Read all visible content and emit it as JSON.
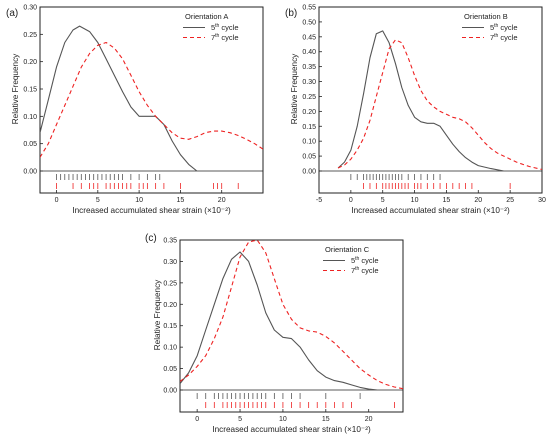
{
  "chart_data": [
    {
      "type": "line",
      "panel_label": "(a)",
      "legend_title": "Orientation A",
      "xlabel": "Increased accumulated shear strain (×10⁻²)",
      "ylabel": "Relative Frequency",
      "xlim": [
        -2,
        25
      ],
      "ylim": [
        0,
        0.3
      ],
      "xticks": [
        "0",
        "5",
        "10",
        "15",
        "20"
      ],
      "xtick_values": [
        0,
        5,
        10,
        15,
        20
      ],
      "yticks": [
        "0.00",
        "0.05",
        "0.10",
        "0.15",
        "0.20",
        "0.25",
        "0.30"
      ],
      "ytick_values": [
        0,
        0.05,
        0.1,
        0.15,
        0.2,
        0.25,
        0.3
      ],
      "legend_position": "top-right",
      "series": [
        {
          "name": "5th cycle",
          "name_base": "5",
          "name_sup": "th",
          "name_rest": " cycle",
          "color": "#555555",
          "dash": "solid",
          "x": [
            -2,
            -1,
            0,
            1,
            2,
            2.8,
            4,
            5,
            6,
            7,
            8,
            9,
            10,
            11,
            12,
            13,
            14,
            15,
            16,
            17
          ],
          "y": [
            0.07,
            0.13,
            0.19,
            0.235,
            0.258,
            0.265,
            0.255,
            0.235,
            0.205,
            0.175,
            0.145,
            0.117,
            0.1,
            0.1,
            0.1,
            0.085,
            0.055,
            0.03,
            0.012,
            0.0
          ],
          "rug": [
            0,
            0.5,
            1,
            1.5,
            2,
            2.5,
            3,
            3.5,
            4,
            4.5,
            5,
            5.5,
            6,
            6.5,
            7,
            7.5,
            8,
            9,
            10,
            11,
            12,
            12.5
          ]
        },
        {
          "name": "7th cycle",
          "name_base": "7",
          "name_sup": "th",
          "name_rest": " cycle",
          "color": "#ee2222",
          "dash": "dashed",
          "x": [
            -2,
            -1,
            0,
            1,
            2,
            3,
            4,
            5,
            6,
            7,
            8,
            9,
            10,
            11,
            12,
            13,
            14,
            15,
            16,
            17,
            18,
            19,
            20,
            21,
            22,
            23,
            24,
            25
          ],
          "y": [
            0.025,
            0.05,
            0.085,
            0.12,
            0.155,
            0.19,
            0.215,
            0.23,
            0.235,
            0.225,
            0.205,
            0.175,
            0.145,
            0.12,
            0.1,
            0.085,
            0.07,
            0.06,
            0.058,
            0.063,
            0.07,
            0.073,
            0.073,
            0.07,
            0.065,
            0.058,
            0.05,
            0.04
          ],
          "rug": [
            0,
            2,
            3,
            4,
            4.5,
            5,
            6,
            6.5,
            7,
            7.5,
            8,
            8.5,
            9,
            10,
            10.5,
            11,
            12,
            13,
            15,
            19,
            19.5,
            20,
            22
          ]
        }
      ]
    },
    {
      "type": "line",
      "panel_label": "(b)",
      "legend_title": "Orientation B",
      "xlabel": "Increased accumulated shear strain (×10⁻²)",
      "ylabel": "Relative Frequency",
      "xlim": [
        -5,
        30
      ],
      "ylim": [
        0,
        0.55
      ],
      "xticks": [
        "-5",
        "0",
        "5",
        "10",
        "15",
        "20",
        "25",
        "30"
      ],
      "xtick_values": [
        -5,
        0,
        5,
        10,
        15,
        20,
        25,
        30
      ],
      "yticks": [
        "0.00",
        "0.05",
        "0.10",
        "0.15",
        "0.20",
        "0.25",
        "0.30",
        "0.35",
        "0.40",
        "0.45",
        "0.50",
        "0.55"
      ],
      "ytick_values": [
        0,
        0.05,
        0.1,
        0.15,
        0.2,
        0.25,
        0.3,
        0.35,
        0.4,
        0.45,
        0.5,
        0.55
      ],
      "legend_position": "top-right",
      "series": [
        {
          "name": "5th cycle",
          "name_base": "5",
          "name_sup": "th",
          "name_rest": " cycle",
          "color": "#555555",
          "dash": "solid",
          "x": [
            -2,
            -1,
            0,
            1,
            2,
            3,
            4,
            5,
            6,
            7,
            8,
            9,
            10,
            11,
            12,
            13,
            14,
            15,
            16,
            17,
            18,
            19,
            20,
            22,
            24
          ],
          "y": [
            0.01,
            0.03,
            0.07,
            0.15,
            0.26,
            0.38,
            0.46,
            0.47,
            0.43,
            0.36,
            0.28,
            0.22,
            0.18,
            0.165,
            0.16,
            0.16,
            0.15,
            0.12,
            0.09,
            0.065,
            0.045,
            0.03,
            0.018,
            0.008,
            0.0
          ],
          "rug": [
            0,
            1,
            2,
            2.5,
            3,
            3.5,
            4,
            4.5,
            5,
            5.5,
            6,
            6.5,
            7,
            7.5,
            8,
            9,
            10,
            11,
            12,
            13,
            14
          ]
        },
        {
          "name": "7th cycle",
          "name_base": "7",
          "name_sup": "th",
          "name_rest": " cycle",
          "color": "#ee2222",
          "dash": "dashed",
          "x": [
            -2,
            -1,
            0,
            1,
            2,
            3,
            4,
            5,
            6,
            7,
            8,
            9,
            10,
            11,
            12,
            13,
            14,
            15,
            16,
            17,
            18,
            19,
            20,
            21,
            22,
            23,
            24,
            25,
            26,
            27,
            28,
            30
          ],
          "y": [
            0.01,
            0.02,
            0.04,
            0.07,
            0.11,
            0.17,
            0.25,
            0.33,
            0.41,
            0.44,
            0.43,
            0.38,
            0.32,
            0.27,
            0.235,
            0.215,
            0.2,
            0.19,
            0.18,
            0.175,
            0.165,
            0.145,
            0.12,
            0.095,
            0.075,
            0.06,
            0.05,
            0.04,
            0.03,
            0.022,
            0.015,
            0.005
          ],
          "rug": [
            2,
            3,
            4,
            5,
            5.5,
            6,
            6.5,
            7,
            7.5,
            8,
            8.5,
            9,
            10,
            10.5,
            11,
            12,
            13,
            14,
            15,
            16,
            17,
            18,
            19,
            25
          ]
        }
      ]
    },
    {
      "type": "line",
      "panel_label": "(c)",
      "legend_title": "Orientation C",
      "xlabel": "Increased accumulated shear strain (×10⁻²)",
      "ylabel": "Relative Frequency",
      "xlim": [
        -2,
        24
      ],
      "ylim": [
        0,
        0.35
      ],
      "xticks": [
        "0",
        "5",
        "10",
        "15",
        "20"
      ],
      "xtick_values": [
        0,
        5,
        10,
        15,
        20
      ],
      "yticks": [
        "0.00",
        "0.05",
        "0.10",
        "0.15",
        "0.20",
        "0.25",
        "0.30",
        "0.35"
      ],
      "ytick_values": [
        0,
        0.05,
        0.1,
        0.15,
        0.2,
        0.25,
        0.3,
        0.35
      ],
      "legend_position": "top-right",
      "series": [
        {
          "name": "5th cycle",
          "name_base": "5",
          "name_sup": "th",
          "name_rest": " cycle",
          "color": "#555555",
          "dash": "solid",
          "x": [
            -2,
            -1,
            0,
            1,
            2,
            3,
            4,
            5,
            6,
            7,
            8,
            9,
            10,
            11,
            12,
            13,
            14,
            15,
            16,
            17,
            18,
            19,
            20,
            21
          ],
          "y": [
            0.015,
            0.04,
            0.08,
            0.14,
            0.2,
            0.26,
            0.305,
            0.322,
            0.3,
            0.245,
            0.18,
            0.14,
            0.123,
            0.12,
            0.1,
            0.07,
            0.045,
            0.03,
            0.022,
            0.018,
            0.012,
            0.006,
            0.002,
            0.0
          ],
          "rug": [
            0,
            1,
            2,
            2.5,
            3,
            3.5,
            4,
            4.5,
            5,
            5.5,
            6,
            6.5,
            7,
            7.5,
            8,
            9,
            10,
            11,
            12,
            15,
            19
          ]
        },
        {
          "name": "7th cycle",
          "name_base": "7",
          "name_sup": "th",
          "name_rest": " cycle",
          "color": "#ee2222",
          "dash": "dashed",
          "x": [
            -2,
            -1,
            0,
            1,
            2,
            3,
            4,
            5,
            6,
            7,
            8,
            9,
            10,
            11,
            12,
            13,
            14,
            15,
            16,
            17,
            18,
            19,
            20,
            21,
            22,
            23,
            24
          ],
          "y": [
            0.02,
            0.035,
            0.055,
            0.08,
            0.12,
            0.17,
            0.24,
            0.31,
            0.345,
            0.35,
            0.32,
            0.26,
            0.2,
            0.165,
            0.145,
            0.138,
            0.135,
            0.125,
            0.11,
            0.09,
            0.07,
            0.05,
            0.035,
            0.022,
            0.013,
            0.007,
            0.003
          ],
          "rug": [
            1,
            2,
            3,
            3.5,
            4,
            4.5,
            5,
            5.5,
            6,
            6.5,
            7,
            7.5,
            8,
            9,
            10,
            11,
            12,
            13,
            14,
            15,
            16,
            17,
            18,
            23
          ]
        }
      ]
    }
  ]
}
